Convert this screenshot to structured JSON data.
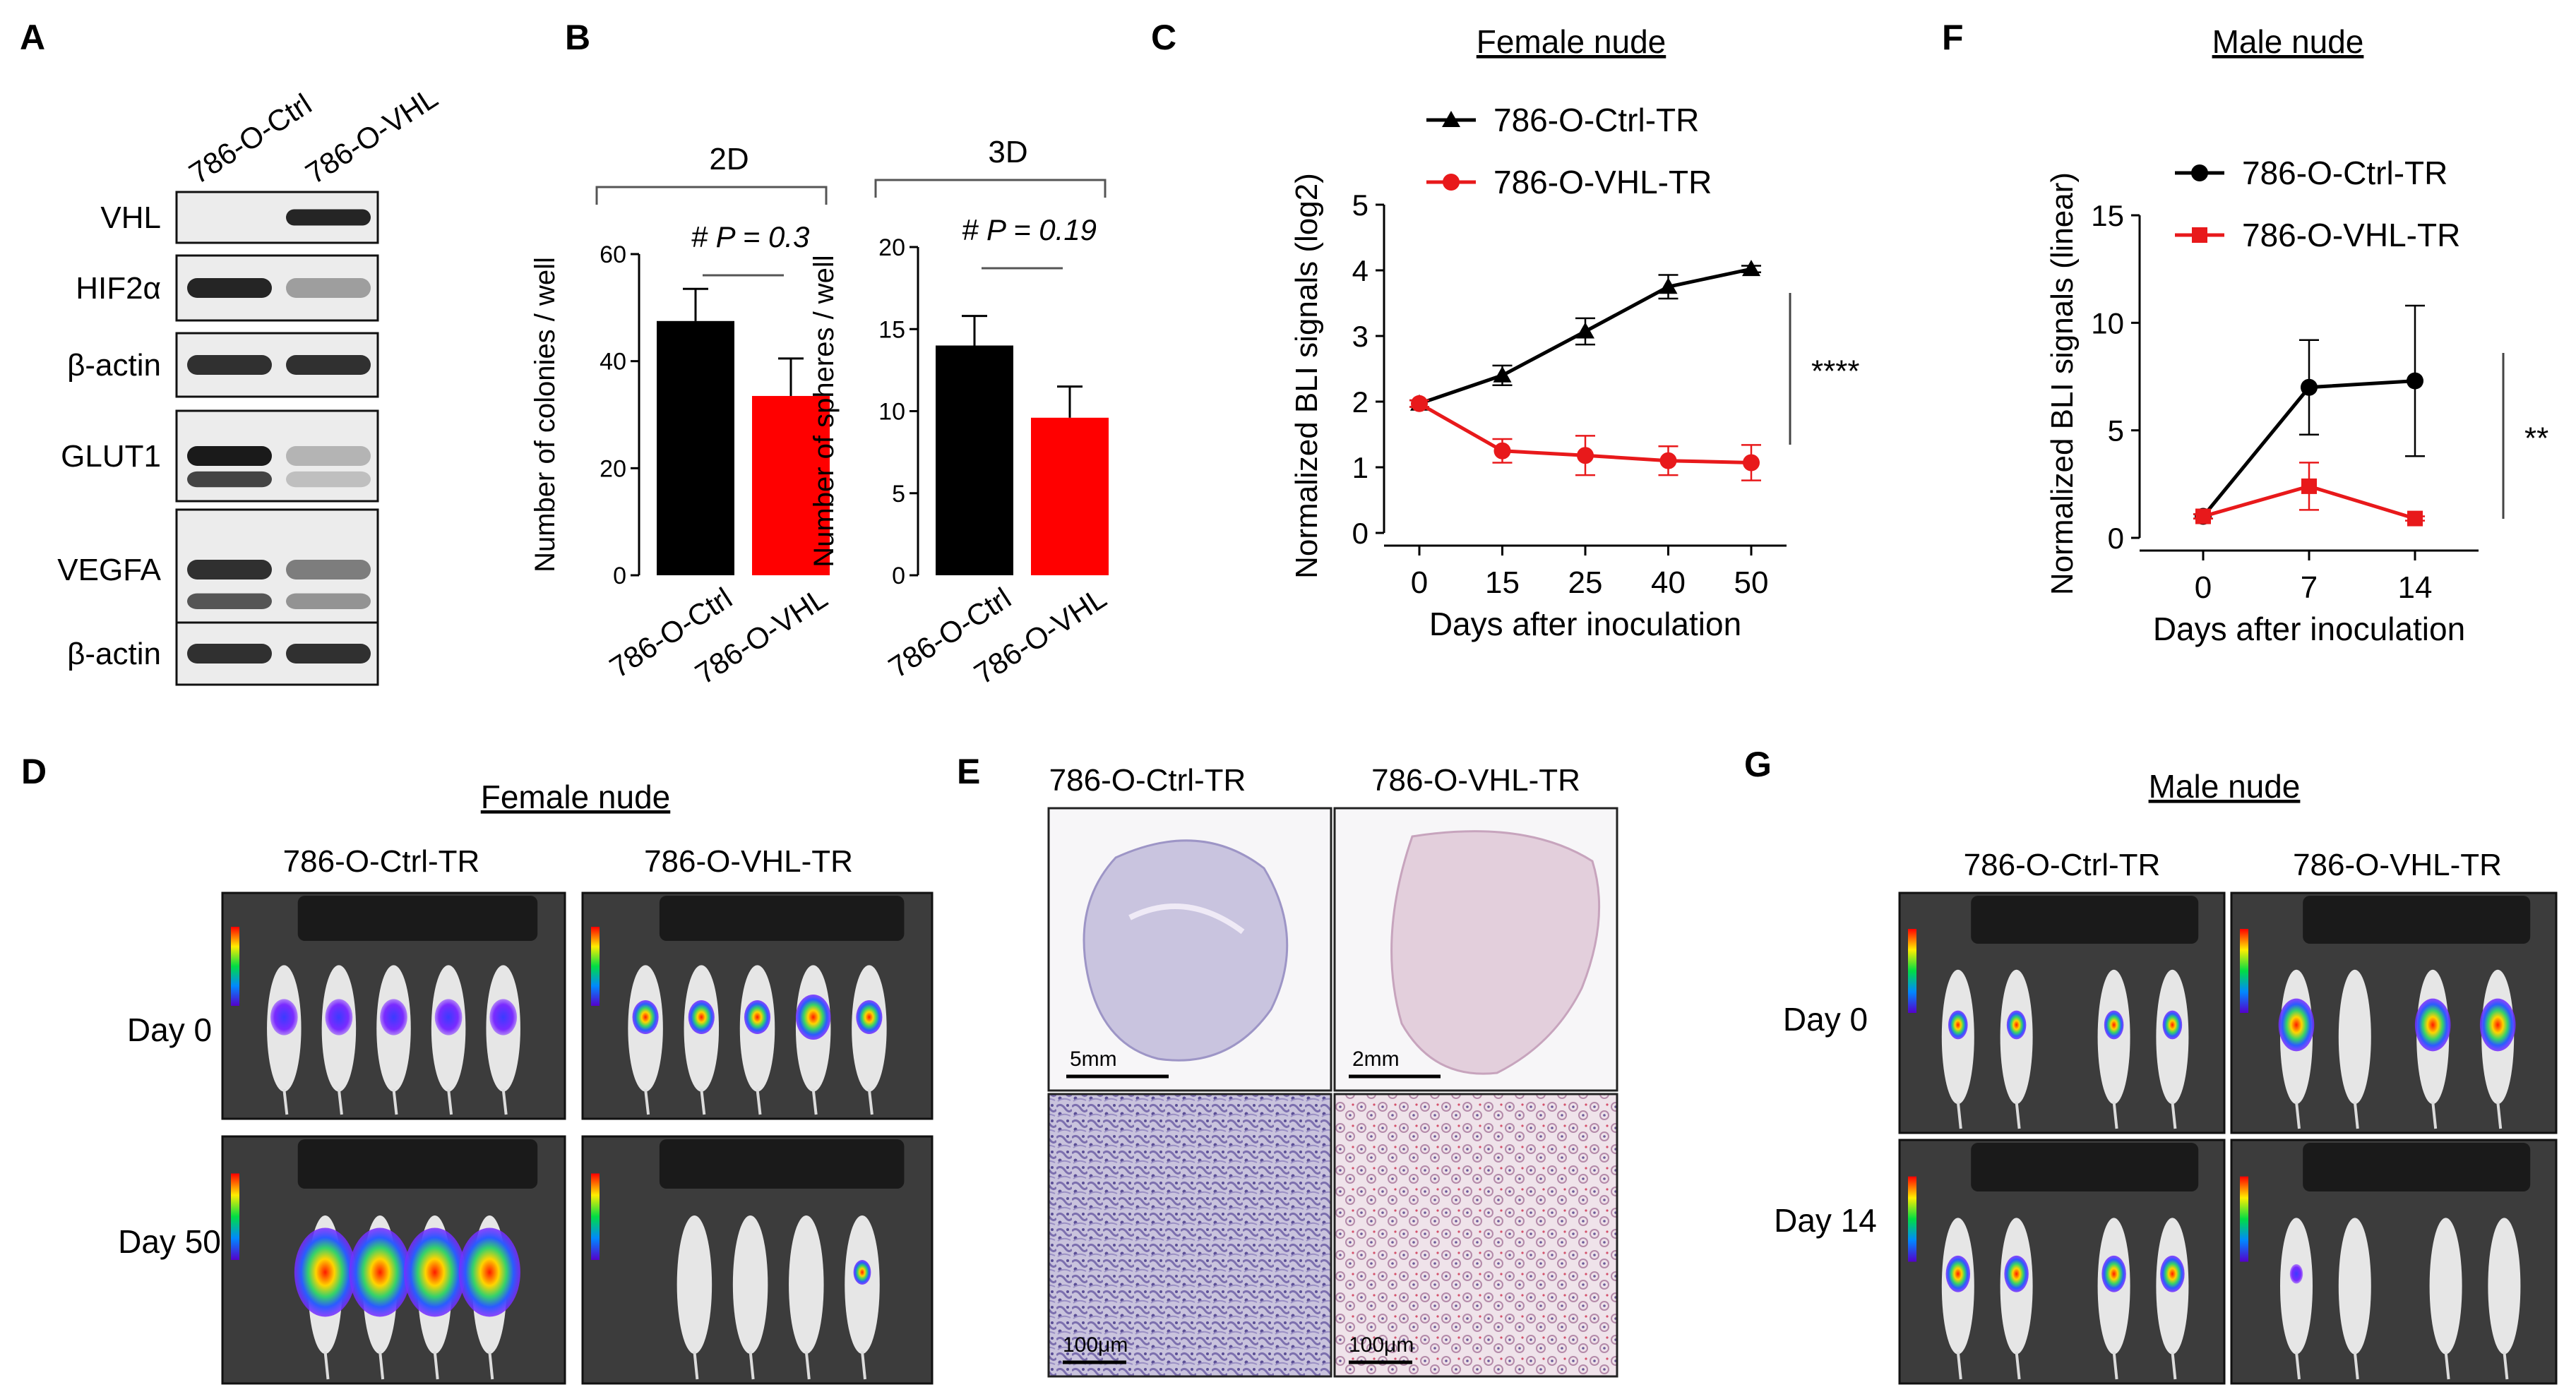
{
  "panel_labels": {
    "A": "A",
    "B": "B",
    "C": "C",
    "D": "D",
    "E": "E",
    "F": "F",
    "G": "G"
  },
  "panel_a": {
    "lanes": [
      "786-O-Ctrl",
      "786-O-VHL"
    ],
    "rows": [
      {
        "label": "VHL",
        "bands": [
          0,
          0.9
        ]
      },
      {
        "label": "HIF2α",
        "bands": [
          0.9,
          0.35
        ]
      },
      {
        "label": "β-actin",
        "bands": [
          0.85,
          0.85
        ]
      },
      {
        "label": "GLUT1",
        "bands": [
          0.95,
          0.25
        ]
      },
      {
        "label": "VEGFA",
        "bands": [
          0.85,
          0.5
        ]
      },
      {
        "label": "β-actin",
        "bands": [
          0.85,
          0.85
        ]
      }
    ]
  },
  "chart_data": [
    {
      "id": "B-2D",
      "type": "bar",
      "title": "2D",
      "categories": [
        "786-O-Ctrl",
        "786-O-VHL"
      ],
      "values": [
        47.5,
        33.5
      ],
      "errors": [
        6,
        7
      ],
      "colors": [
        "#000000",
        "#ff0000"
      ],
      "ylabel": "Number of colonies / well",
      "ylim": [
        0,
        60
      ],
      "yticks": [
        "0",
        "20",
        "40",
        "60"
      ],
      "annotation": "# P = 0.3"
    },
    {
      "id": "B-3D",
      "type": "bar",
      "title": "3D",
      "categories": [
        "786-O-Ctrl",
        "786-O-VHL"
      ],
      "values": [
        14,
        9.6
      ],
      "errors": [
        1.8,
        1.9
      ],
      "colors": [
        "#000000",
        "#ff0000"
      ],
      "ylabel": "Number of spheres / well",
      "ylim": [
        0,
        20
      ],
      "yticks": [
        "0",
        "5",
        "10",
        "15",
        "20"
      ],
      "annotation": "# P = 0.19"
    },
    {
      "id": "C",
      "type": "line",
      "title": "Female nude",
      "x": [
        0,
        15,
        25,
        40,
        50
      ],
      "xticks": [
        "0",
        "15",
        "25",
        "40",
        "50"
      ],
      "series": [
        {
          "name": "786-O-Ctrl-TR",
          "color": "#000000",
          "marker": "triangle",
          "values": [
            1.97,
            2.4,
            3.07,
            3.75,
            4.02
          ],
          "errors": [
            0.05,
            0.15,
            0.2,
            0.18,
            0.05
          ]
        },
        {
          "name": "786-O-VHL-TR",
          "color": "#e8191b",
          "marker": "circle",
          "values": [
            1.97,
            1.25,
            1.18,
            1.1,
            1.07
          ],
          "errors": [
            0.05,
            0.18,
            0.3,
            0.22,
            0.27
          ]
        }
      ],
      "xlabel": "Days after inoculation",
      "ylabel": "Normalized BLI signals (log2)",
      "ylim": [
        0,
        5
      ],
      "yticks": [
        "0",
        "1",
        "2",
        "3",
        "4",
        "5"
      ],
      "significance": "****"
    },
    {
      "id": "F",
      "type": "line",
      "title": "Male nude",
      "x": [
        0,
        7,
        14
      ],
      "xticks": [
        "0",
        "7",
        "14"
      ],
      "series": [
        {
          "name": "786-O-Ctrl-TR",
          "color": "#000000",
          "marker": "circle",
          "values": [
            1.0,
            7.0,
            7.3
          ],
          "errors": [
            0.1,
            2.2,
            3.5
          ]
        },
        {
          "name": "786-O-VHL-TR",
          "color": "#e8191b",
          "marker": "square",
          "values": [
            1.0,
            2.4,
            0.9
          ],
          "errors": [
            0.1,
            1.1,
            0.1
          ]
        }
      ],
      "xlabel": "Days after inoculation",
      "ylabel": "Normalized BLI signals (linear)",
      "ylim": [
        0,
        15
      ],
      "yticks": [
        "0",
        "5",
        "10",
        "15"
      ],
      "significance": "**"
    }
  ],
  "panel_d": {
    "title": "Female nude",
    "columns": [
      "786-O-Ctrl-TR",
      "786-O-VHL-TR"
    ],
    "rows": [
      "Day 0",
      "Day 50"
    ]
  },
  "panel_e": {
    "columns": [
      "786-O-Ctrl-TR",
      "786-O-VHL-TR"
    ],
    "scalebars": [
      "5mm",
      "2mm",
      "100μm",
      "100μm"
    ]
  },
  "panel_g": {
    "title": "Male nude",
    "columns": [
      "786-O-Ctrl-TR",
      "786-O-VHL-TR"
    ],
    "rows": [
      "Day 0",
      "Day 14"
    ]
  },
  "colors": {
    "ctrl": "#000000",
    "vhl": "#e8191b",
    "bar_red": "#ff0000"
  }
}
